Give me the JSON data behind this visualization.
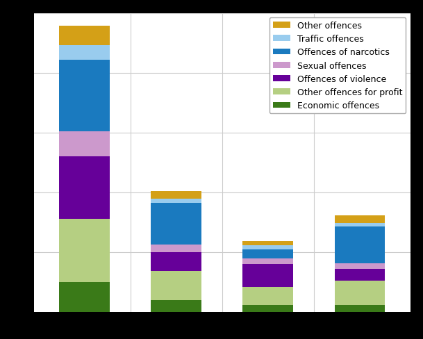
{
  "x_positions": [
    0,
    1,
    2,
    3
  ],
  "bar_width": 0.55,
  "legend_labels_order": [
    "Other offences",
    "Traffic offences",
    "Offences of narcotics",
    "Sexual offences",
    "Offences of violence",
    "Other offences for profit",
    "Economic offences"
  ],
  "stack_order": [
    "Economic offences",
    "Other offences for profit",
    "Offences of violence",
    "Sexual offences",
    "Offences of narcotics",
    "Traffic offences",
    "Other offences"
  ],
  "colors": {
    "Economic offences": "#3a7a18",
    "Other offences for profit": "#b5cf82",
    "Offences of violence": "#660099",
    "Sexual offences": "#cc99cc",
    "Offences of narcotics": "#1a7abf",
    "Traffic offences": "#99ccee",
    "Other offences": "#d4a017"
  },
  "values": {
    "Economic offences": [
      500,
      200,
      120,
      120
    ],
    "Other offences for profit": [
      1050,
      480,
      300,
      400
    ],
    "Offences of violence": [
      1050,
      320,
      380,
      200
    ],
    "Sexual offences": [
      420,
      120,
      90,
      90
    ],
    "Offences of narcotics": [
      1200,
      700,
      160,
      620
    ],
    "Traffic offences": [
      240,
      70,
      60,
      60
    ],
    "Other offences": [
      320,
      130,
      70,
      120
    ]
  },
  "ylim": [
    0,
    5000
  ],
  "xlim": [
    -0.55,
    3.55
  ],
  "background_color": "#ffffff",
  "outer_color": "#000000",
  "grid_color": "#cccccc",
  "legend_fontsize": 9,
  "figsize": [
    6.09,
    4.89
  ],
  "dpi": 100
}
